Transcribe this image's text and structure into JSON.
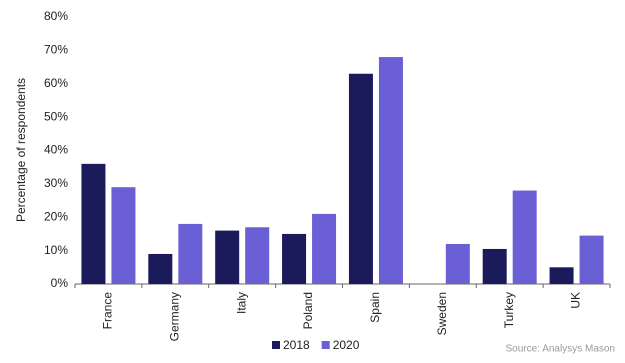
{
  "chart_data": {
    "type": "bar",
    "y_label": "Percentage of respondents",
    "source": "Source: Analysys Mason",
    "categories": [
      "France",
      "Germany",
      "Italy",
      "Poland",
      "Spain",
      "Sweden",
      "Turkey",
      "UK"
    ],
    "series": [
      {
        "name": "2018",
        "color": "#1b1a5b",
        "values": [
          36,
          9,
          16,
          15,
          63,
          0,
          10.5,
          5
        ]
      },
      {
        "name": "2020",
        "color": "#6b5fd6",
        "values": [
          29,
          18,
          17,
          21,
          68,
          12,
          28,
          14.5
        ]
      }
    ],
    "ylim": [
      0,
      80
    ],
    "yticks": [
      {
        "value": 0,
        "label": "0%"
      },
      {
        "value": 10,
        "label": "10%"
      },
      {
        "value": 20,
        "label": "20%"
      },
      {
        "value": 30,
        "label": "30%"
      },
      {
        "value": 40,
        "label": "40%"
      },
      {
        "value": 50,
        "label": "50%"
      },
      {
        "value": 60,
        "label": "60%"
      },
      {
        "value": 70,
        "label": "70%"
      },
      {
        "value": 80,
        "label": "80%"
      }
    ],
    "legend": "bottom"
  }
}
